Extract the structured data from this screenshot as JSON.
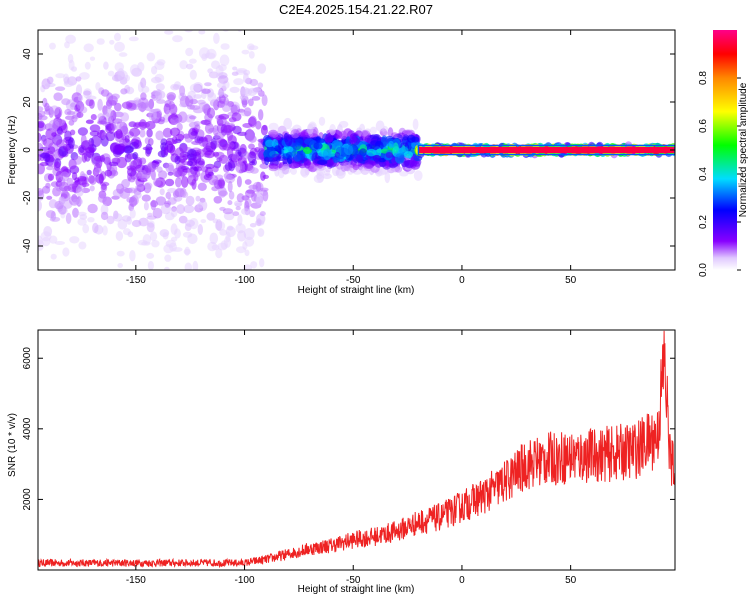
{
  "title": "C2E4.2025.154.21.22.R07",
  "colors": {
    "frame": "#000000",
    "snr_line": "#ee2222",
    "background": "#ffffff"
  },
  "chart_data": [
    {
      "type": "heatmap",
      "title": "C2E4.2025.154.21.22.R07",
      "xlabel": "Height of straight line (km)",
      "ylabel": "Frequency (Hz)",
      "xlim": [
        -195,
        98
      ],
      "ylim": [
        -50,
        50
      ],
      "x_ticks": [
        -150,
        -100,
        -50,
        0,
        50
      ],
      "y_ticks": [
        -40,
        -20,
        0,
        20,
        40
      ],
      "colorbar": {
        "label": "Normalized spectral amplitude",
        "range": [
          0.0,
          1.0
        ],
        "ticks": [
          "0.0",
          "0.2",
          "0.4",
          "0.6",
          "0.8"
        ],
        "tick_values": [
          0.0,
          0.2,
          0.4,
          0.6,
          0.8
        ],
        "colormap": "rainbow (white-violet-blue-cyan-green-yellow-red-magenta)"
      },
      "regions": [
        {
          "x_range": [
            -195,
            -90
          ],
          "freq_spread": 45,
          "core_amplitude": 0.15,
          "description": "diffuse scattered low amplitude"
        },
        {
          "x_range": [
            -90,
            -20
          ],
          "freq_spread": 8,
          "core_amplitude": 0.45,
          "description": "narrowing band with rising amplitude"
        },
        {
          "x_range": [
            -20,
            98
          ],
          "freq_spread": 1,
          "core_amplitude": 0.95,
          "description": "narrow strong line near 0 Hz"
        }
      ]
    },
    {
      "type": "line",
      "xlabel": "Height of straight line (km)",
      "ylabel": "SNR (10 * v/v)",
      "xlim": [
        -195,
        98
      ],
      "ylim": [
        0,
        6800
      ],
      "x_ticks": [
        -150,
        -100,
        -50,
        0,
        50
      ],
      "y_ticks": [
        2000,
        4000,
        6000
      ],
      "series": [
        {
          "x": [
            -195,
            -180,
            -160,
            -140,
            -120,
            -100,
            -90,
            -80,
            -70,
            -60,
            -50,
            -40,
            -30,
            -20,
            -10,
            0,
            10,
            20,
            30,
            40,
            50,
            60,
            70,
            80,
            85,
            90,
            93,
            96
          ],
          "values": [
            200,
            200,
            200,
            200,
            200,
            200,
            300,
            450,
            600,
            700,
            850,
            950,
            1100,
            1350,
            1500,
            1800,
            2100,
            2500,
            3000,
            3150,
            3200,
            3250,
            3300,
            3400,
            3600,
            3800,
            6000,
            3000
          ]
        }
      ]
    }
  ]
}
